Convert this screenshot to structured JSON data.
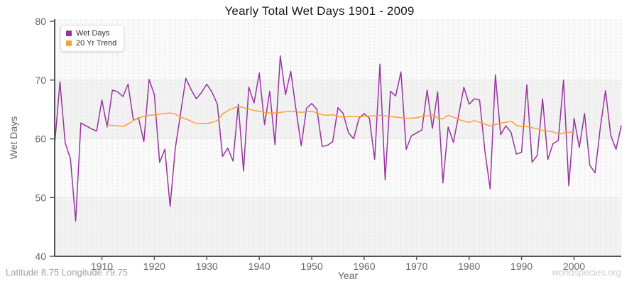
{
  "page": {
    "title": "Yearly Total Wet Days 1901 - 2009",
    "footer_left": "Latitude 8.75 Longitude 79.75",
    "footer_right": "worldspecies.org"
  },
  "legend": {
    "items": [
      {
        "label": "Wet Days",
        "color": "#9933A0"
      },
      {
        "label": "20 Yr Trend",
        "color": "#FFA030"
      }
    ]
  },
  "chart_data": {
    "type": "line",
    "title": "Yearly Total Wet Days 1901 - 2009",
    "xlabel": "Year",
    "ylabel": "Wet Days",
    "xlim": [
      1901,
      2009
    ],
    "ylim": [
      40,
      80
    ],
    "x_ticks": [
      1910,
      1920,
      1930,
      1940,
      1950,
      1960,
      1970,
      1980,
      1990,
      2000
    ],
    "y_ticks": [
      40,
      50,
      60,
      70,
      80
    ],
    "grid": {
      "vertical_dashed_per_year": true,
      "horizontal_lines": [
        50,
        60,
        70
      ],
      "shaded_bands": [
        [
          40,
          50
        ],
        [
          60,
          70
        ]
      ]
    },
    "legend_position": "top-left",
    "series": [
      {
        "name": "Wet Days",
        "color": "#9933A0",
        "x_start": 1901,
        "values": [
          59,
          69.7,
          59.3,
          56.6,
          46,
          62.7,
          62.2,
          61.7,
          61.3,
          66.6,
          62,
          68.3,
          68,
          67.2,
          69.3,
          63.2,
          63.5,
          59.5,
          70.1,
          67.5,
          56,
          58.2,
          48.5,
          58.4,
          64.3,
          70.3,
          68.4,
          66.8,
          67.9,
          69.3,
          67.9,
          65.9,
          57,
          58.4,
          56.2,
          65.9,
          54.5,
          68.8,
          66.1,
          71.2,
          62.4,
          68.1,
          59,
          74.1,
          67.5,
          71.5,
          65,
          58.8,
          65.2,
          66,
          65,
          58.7,
          58.9,
          59.5,
          65.3,
          64.3,
          61,
          60,
          63.5,
          64.3,
          63.5,
          56.5,
          72.7,
          53,
          68.1,
          67.3,
          71.4,
          58.2,
          60.5,
          61,
          61.5,
          68.3,
          61.8,
          68,
          52.5,
          62,
          59.4,
          64,
          68.8,
          65.9,
          66.8,
          66.6,
          58,
          51.5,
          70.9,
          60.7,
          62.2,
          61.1,
          57.4,
          57.7,
          69.2,
          56,
          57.2,
          66.8,
          56.5,
          59.2,
          59.7,
          70,
          52,
          63.5,
          58.5,
          64.3,
          55.5,
          54.2,
          61.8,
          68.2,
          60.6,
          58.2,
          62.2
        ]
      },
      {
        "name": "20 Yr Trend",
        "color": "#FFA030",
        "x_start": 1911,
        "values": [
          62.3,
          62.3,
          62.2,
          62.1,
          62.5,
          63.1,
          63.6,
          63.8,
          64,
          64.1,
          64.2,
          64.3,
          64.4,
          64.2,
          63.7,
          63.4,
          63,
          62.6,
          62.6,
          62.6,
          62.8,
          63.1,
          64.2,
          64.8,
          65.2,
          65.5,
          65.3,
          65.1,
          64.8,
          64.7,
          64.5,
          64.4,
          64.4,
          64.5,
          64.6,
          64.7,
          64.6,
          64.5,
          64.6,
          64.7,
          64.4,
          64.1,
          64,
          64.1,
          63.8,
          63.7,
          63.8,
          63.8,
          63.8,
          63.8,
          63.9,
          63.9,
          64,
          63.9,
          63.8,
          63.7,
          63.6,
          63.5,
          63.5,
          63.6,
          63.8,
          63.9,
          64.1,
          63.5,
          63.4,
          64,
          63.7,
          63.3,
          63,
          62.8,
          63.1,
          62.8,
          62.5,
          62.2,
          62.4,
          62.7,
          62.8,
          63,
          62.3,
          62.1,
          62.1,
          61.9,
          61.7,
          61.4,
          61.3,
          61.2,
          60.8,
          61,
          61.1,
          61.2
        ]
      }
    ],
    "style": {
      "band_color": "#f2f2f2",
      "band_alt_color": "#fafafa",
      "year_grid_color": "#e2e2e2",
      "value_grid_color": "#e7e7e7",
      "axis_color": "#555555",
      "tick_label_color": "#666666"
    }
  }
}
